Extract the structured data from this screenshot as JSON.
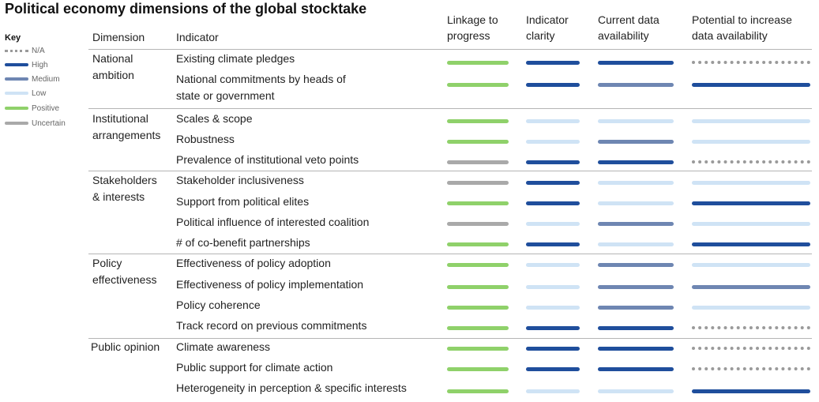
{
  "title": "Political economy dimensions of the global stocktake",
  "key": {
    "title": "Key",
    "items": [
      {
        "name": "na",
        "label": "N/A",
        "color": "#9a9a9a",
        "style": "dotted"
      },
      {
        "name": "high",
        "label": "High",
        "color": "#1f4e9c",
        "style": "solid"
      },
      {
        "name": "medium",
        "label": "Medium",
        "color": "#6e86b2",
        "style": "solid"
      },
      {
        "name": "low",
        "label": "Low",
        "color": "#cfe3f5",
        "style": "solid"
      },
      {
        "name": "positive",
        "label": "Positive",
        "color": "#8fd16a",
        "style": "solid"
      },
      {
        "name": "uncertain",
        "label": "Uncertain",
        "color": "#a9a9a9",
        "style": "solid"
      }
    ]
  },
  "headers": {
    "dimension": "Dimension",
    "indicator": "Indicator",
    "linkage_line1": "Linkage to",
    "linkage_line2": "progress",
    "clarity_line1": "Indicator",
    "clarity_line2": "clarity",
    "current_line1": "Current data",
    "current_line2": "availability",
    "potential_line1": "Potential to increase",
    "potential_line2": "data availability"
  },
  "dimensions": [
    {
      "line1": "National",
      "line2": "ambition"
    },
    {
      "line1": "Institutional",
      "line2": "arrangements"
    },
    {
      "line1": "Stakeholders",
      "line2": "& interests"
    },
    {
      "line1": "Policy",
      "line2": "effectiveness"
    },
    {
      "line1": "Public opinion",
      "line2": ""
    }
  ],
  "rows": [
    {
      "line1": "Existing climate pledges",
      "line2": "",
      "linkage": "positive",
      "clarity": "high",
      "current": "high",
      "potential": "na"
    },
    {
      "line1": "National commitments by heads of",
      "line2": "state or government",
      "linkage": "positive",
      "clarity": "high",
      "current": "medium",
      "potential": "high"
    },
    {
      "line1": "Scales & scope",
      "line2": "",
      "linkage": "positive",
      "clarity": "low",
      "current": "low",
      "potential": "low"
    },
    {
      "line1": "Robustness",
      "line2": "",
      "linkage": "positive",
      "clarity": "low",
      "current": "medium",
      "potential": "low"
    },
    {
      "line1": "Prevalence of institutional veto points",
      "line2": "",
      "linkage": "uncertain",
      "clarity": "high",
      "current": "high",
      "potential": "na"
    },
    {
      "line1": "Stakeholder inclusiveness",
      "line2": "",
      "linkage": "uncertain",
      "clarity": "high",
      "current": "low",
      "potential": "low"
    },
    {
      "line1": "Support from political elites",
      "line2": "",
      "linkage": "positive",
      "clarity": "high",
      "current": "low",
      "potential": "high"
    },
    {
      "line1": "Political influence of interested coalition",
      "line2": "",
      "linkage": "uncertain",
      "clarity": "low",
      "current": "medium",
      "potential": "low"
    },
    {
      "line1": "# of co-benefit partnerships",
      "line2": "",
      "linkage": "positive",
      "clarity": "high",
      "current": "low",
      "potential": "high"
    },
    {
      "line1": "Effectiveness of policy adoption",
      "line2": "",
      "linkage": "positive",
      "clarity": "low",
      "current": "medium",
      "potential": "low"
    },
    {
      "line1": "Effectiveness of policy implementation",
      "line2": "",
      "linkage": "positive",
      "clarity": "low",
      "current": "medium",
      "potential": "medium"
    },
    {
      "line1": "Policy coherence",
      "line2": "",
      "linkage": "positive",
      "clarity": "low",
      "current": "medium",
      "potential": "low"
    },
    {
      "line1": "Track record on previous commitments",
      "line2": "",
      "linkage": "positive",
      "clarity": "high",
      "current": "high",
      "potential": "na"
    },
    {
      "line1": "Climate awareness",
      "line2": "",
      "linkage": "positive",
      "clarity": "high",
      "current": "high",
      "potential": "na"
    },
    {
      "line1": "Public support for climate action",
      "line2": "",
      "linkage": "positive",
      "clarity": "high",
      "current": "high",
      "potential": "na"
    },
    {
      "line1": "Heterogeneity in perception & specific interests",
      "line2": "",
      "linkage": "positive",
      "clarity": "low",
      "current": "low",
      "potential": "high"
    }
  ]
}
